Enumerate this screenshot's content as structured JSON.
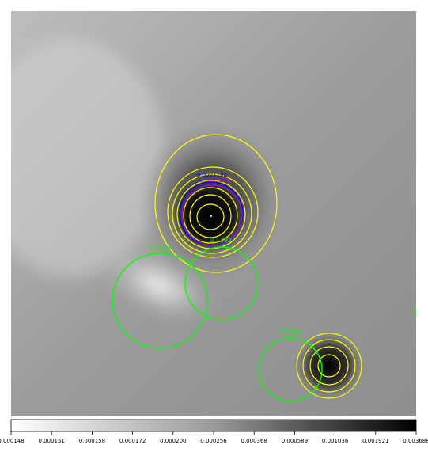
{
  "image": {
    "colormap": "grey (reversed)",
    "background_colors": [
      "#e6e6e6",
      "#9a9a9a",
      "#1a1a1a"
    ],
    "accent": "#ffff00"
  },
  "regions": {
    "labels": [
      {
        "text": "0.1324",
        "color": "#00ff00"
      },
      {
        "text": "0.1292",
        "color": "#00ff00"
      },
      {
        "text": "0.2294",
        "color": "#00ff00"
      },
      {
        "text": "0.0021162",
        "color": "#0000ff"
      },
      {
        "text": "0.0021162",
        "color": "#aa00ff"
      }
    ]
  },
  "colorbar": {
    "ticks": [
      "0.000148",
      "0.000151",
      "0.000158",
      "0.000172",
      "0.000200",
      "0.000256",
      "0.000368",
      "0.000589",
      "0.001036",
      "0.001921",
      "0.003688"
    ]
  }
}
